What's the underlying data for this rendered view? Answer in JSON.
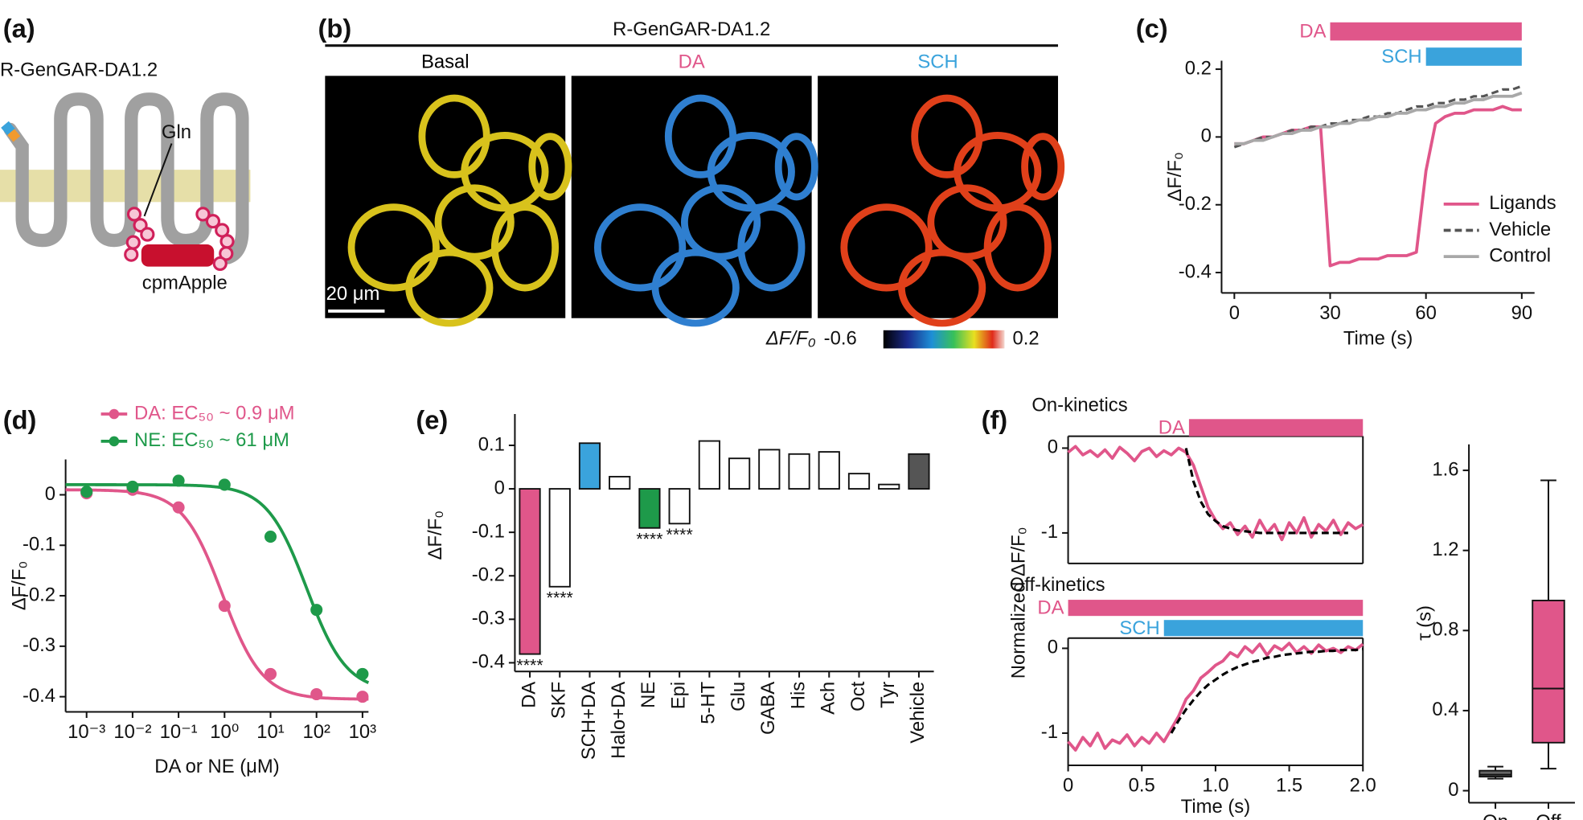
{
  "panel_a": {
    "label": "(a)",
    "title": "R-GenGAR-DA1.2",
    "residue": "Gln",
    "domain": "cpmApple"
  },
  "panel_b": {
    "label": "(b)",
    "title": "R-GenGAR-DA1.2",
    "images": [
      {
        "title": "Basal",
        "color": "#000000"
      },
      {
        "title": "DA",
        "color": "#e0568a"
      },
      {
        "title": "SCH",
        "color": "#3aa3dc"
      }
    ],
    "scale_bar": "20 μm",
    "colorbar": {
      "label": "ΔF/F₀",
      "min": -0.6,
      "max": 0.2
    }
  },
  "chart_data": [
    {
      "type": "line",
      "label": "(c)",
      "xlabel": "Time (s)",
      "ylabel": "ΔF/F₀",
      "x": [
        0,
        3,
        6,
        9,
        12,
        15,
        18,
        21,
        24,
        27,
        30,
        33,
        36,
        39,
        42,
        45,
        48,
        51,
        54,
        57,
        60,
        63,
        66,
        69,
        72,
        75,
        78,
        81,
        84,
        87,
        90
      ],
      "xlim": [
        -4,
        94
      ],
      "xticks": [
        0,
        30,
        60,
        90
      ],
      "ylim": [
        -0.46,
        0.225
      ],
      "yticks": [
        -0.4,
        -0.2,
        0,
        0.2
      ],
      "legend": "lower right",
      "series": [
        {
          "name": "Ligands",
          "color": "#e0568a",
          "values": [
            -0.02,
            -0.02,
            -0.01,
            0,
            0,
            0.01,
            0.02,
            0.02,
            0.03,
            0.03,
            -0.38,
            -0.37,
            -0.37,
            -0.36,
            -0.36,
            -0.36,
            -0.35,
            -0.35,
            -0.35,
            -0.34,
            -0.1,
            0.04,
            0.06,
            0.07,
            0.07,
            0.08,
            0.08,
            0.08,
            0.09,
            0.08,
            0.08
          ]
        },
        {
          "name": "Vehicle",
          "color": "#555555",
          "dash": true,
          "values": [
            -0.03,
            -0.02,
            -0.01,
            0,
            0,
            0.01,
            0.02,
            0.02,
            0.03,
            0.03,
            0.04,
            0.04,
            0.05,
            0.05,
            0.06,
            0.06,
            0.07,
            0.07,
            0.08,
            0.09,
            0.09,
            0.1,
            0.1,
            0.11,
            0.11,
            0.12,
            0.12,
            0.13,
            0.14,
            0.14,
            0.15
          ]
        },
        {
          "name": "Control",
          "color": "#a8a8a8",
          "values": [
            -0.02,
            -0.02,
            -0.01,
            -0.01,
            0,
            0.01,
            0.01,
            0.02,
            0.02,
            0.03,
            0.03,
            0.04,
            0.04,
            0.05,
            0.05,
            0.06,
            0.06,
            0.07,
            0.07,
            0.08,
            0.08,
            0.09,
            0.09,
            0.1,
            0.1,
            0.11,
            0.11,
            0.12,
            0.12,
            0.12,
            0.13
          ]
        }
      ],
      "drug_bars": [
        {
          "name": "DA",
          "start": 30,
          "end": 90,
          "color": "#e0568a"
        },
        {
          "name": "SCH",
          "start": 60,
          "end": 90,
          "color": "#3aa3dc"
        }
      ]
    },
    {
      "type": "dose_response",
      "label": "(d)",
      "xlabel": "DA or NE (μM)",
      "ylabel": "ΔF/F₀",
      "log_x": true,
      "x": [
        0.001,
        0.01,
        0.1,
        1,
        10,
        100,
        1000
      ],
      "xlim": [
        0.00035,
        1350
      ],
      "xticks": [
        {
          "value": 0.001,
          "label": "10⁻³"
        },
        {
          "value": 0.01,
          "label": "10⁻²"
        },
        {
          "value": 0.1,
          "label": "10⁻¹"
        },
        {
          "value": 1,
          "label": "10⁰"
        },
        {
          "value": 10,
          "label": "10¹"
        },
        {
          "value": 100,
          "label": "10²"
        },
        {
          "value": 1000,
          "label": "10³"
        }
      ],
      "ylim": [
        -0.43,
        0.07
      ],
      "yticks": [
        -0.4,
        -0.3,
        -0.2,
        -0.1,
        0
      ],
      "legend": "top",
      "series": [
        {
          "name": "DA: EC₅₀ ~ 0.9 μM",
          "color": "#e0568a",
          "values": [
            0.003,
            0.01,
            -0.025,
            -0.22,
            -0.355,
            -0.395,
            -0.4
          ],
          "fit": {
            "top": 0.01,
            "bottom": -0.405,
            "ec50": 0.9,
            "hill": 1
          }
        },
        {
          "name": "NE: EC₅₀ ~ 61 μM",
          "color": "#1e9a4a",
          "values": [
            0.006,
            0.016,
            0.028,
            0.02,
            -0.083,
            -0.228,
            -0.355
          ],
          "fit": {
            "top": 0.02,
            "bottom": -0.39,
            "ec50": 61,
            "hill": 1
          }
        }
      ]
    },
    {
      "type": "bar",
      "label": "(e)",
      "ylabel": "ΔF/F₀",
      "categories": [
        "DA",
        "SKF",
        "SCH+DA",
        "Halo+DA",
        "NE",
        "Epi",
        "5-HT",
        "Glu",
        "GABA",
        "His",
        "Ach",
        "Oct",
        "Tyr",
        "Vehicle"
      ],
      "values": [
        -0.38,
        -0.225,
        0.105,
        0.028,
        -0.09,
        -0.08,
        0.11,
        0.07,
        0.09,
        0.08,
        0.085,
        0.035,
        0.01,
        0.08
      ],
      "colors": [
        "#e0568a",
        "#ffffff",
        "#3aa3dc",
        "#ffffff",
        "#1e9a4a",
        "#ffffff",
        "#ffffff",
        "#ffffff",
        "#ffffff",
        "#ffffff",
        "#ffffff",
        "#ffffff",
        "#ffffff",
        "#555555"
      ],
      "significance": [
        "****",
        "****",
        null,
        null,
        "****",
        "****",
        null,
        null,
        null,
        null,
        null,
        null,
        null,
        null
      ],
      "ylim": [
        -0.42,
        0.172
      ],
      "yticks": [
        -0.4,
        -0.3,
        -0.2,
        -0.1,
        0,
        0.1
      ]
    },
    {
      "type": "line",
      "label": "(f)",
      "title": "On-kinetics",
      "ylabel": "Normalized ΔF/F₀",
      "x": [
        0,
        0.05,
        0.1,
        0.15,
        0.2,
        0.25,
        0.3,
        0.35,
        0.4,
        0.45,
        0.5,
        0.55,
        0.6,
        0.65,
        0.7,
        0.75,
        0.8,
        0.85,
        0.9,
        0.95,
        1,
        1.05,
        1.1,
        1.15,
        1.2,
        1.25,
        1.3,
        1.35,
        1.4,
        1.45,
        1.5,
        1.55,
        1.6,
        1.65,
        1.7,
        1.75,
        1.8,
        1.85,
        1.9,
        1.95,
        2
      ],
      "xlim": [
        0,
        2
      ],
      "ylim": [
        -1.36,
        0.14
      ],
      "yticks": [
        -1,
        0
      ],
      "series": [
        {
          "color": "#e0568a",
          "values": [
            -0.05,
            0.02,
            -0.08,
            -0.03,
            -0.1,
            -0.02,
            -0.12,
            0.01,
            -0.06,
            -0.15,
            -0.04,
            0,
            -0.1,
            -0.03,
            -0.08,
            0,
            -0.05,
            -0.2,
            -0.45,
            -0.7,
            -0.85,
            -0.95,
            -0.88,
            -1.02,
            -0.92,
            -1.05,
            -0.85,
            -1,
            -0.9,
            -1.08,
            -0.88,
            -1,
            -0.82,
            -1.05,
            -0.9,
            -0.98,
            -0.85,
            -1.02,
            -0.88,
            -0.95,
            -0.9
          ]
        },
        {
          "color": "#000000",
          "dash": true,
          "values": [
            null,
            null,
            null,
            null,
            null,
            null,
            null,
            null,
            null,
            null,
            null,
            null,
            null,
            null,
            null,
            null,
            0,
            -0.39,
            -0.63,
            -0.78,
            -0.86,
            -0.92,
            -0.95,
            -0.97,
            -0.98,
            -0.99,
            -1,
            -1,
            -1,
            -1,
            -1,
            -1,
            -1,
            -1,
            -1,
            -1,
            -1,
            -1,
            -1,
            null,
            null
          ]
        }
      ],
      "drug_bars": [
        {
          "name": "DA",
          "start": 0.82,
          "end": 2,
          "color": "#e0568a"
        }
      ]
    },
    {
      "type": "line",
      "title": "Off-kinetics",
      "xlabel": "Time (s)",
      "x": [
        0,
        0.05,
        0.1,
        0.15,
        0.2,
        0.25,
        0.3,
        0.35,
        0.4,
        0.45,
        0.5,
        0.55,
        0.6,
        0.65,
        0.7,
        0.75,
        0.8,
        0.85,
        0.9,
        0.95,
        1,
        1.05,
        1.1,
        1.15,
        1.2,
        1.25,
        1.3,
        1.35,
        1.4,
        1.45,
        1.5,
        1.55,
        1.6,
        1.65,
        1.7,
        1.75,
        1.8,
        1.85,
        1.9,
        1.95,
        2
      ],
      "xlim": [
        0,
        2
      ],
      "xticks": [
        0,
        0.5,
        {
          "value": 1,
          "label": "1.0"
        },
        1.5,
        {
          "value": 2,
          "label": "2.0"
        }
      ],
      "ylim": [
        -1.38,
        0.12
      ],
      "yticks": [
        -1,
        0
      ],
      "series": [
        {
          "color": "#e0568a",
          "values": [
            -1.1,
            -1.2,
            -1.05,
            -1.15,
            -1,
            -1.18,
            -1.08,
            -1.12,
            -1.02,
            -1.15,
            -1.05,
            -1.12,
            -1,
            -1.1,
            -0.95,
            -0.8,
            -0.6,
            -0.5,
            -0.35,
            -0.28,
            -0.2,
            -0.15,
            -0.05,
            -0.1,
            0.02,
            -0.05,
            0.05,
            -0.08,
            0.03,
            -0.02,
            0.06,
            -0.05,
            0.02,
            -0.06,
            0.04,
            -0.03,
            0,
            -0.05,
            0.02,
            -0.02,
            0.05
          ]
        },
        {
          "color": "#000000",
          "dash": true,
          "values": [
            null,
            null,
            null,
            null,
            null,
            null,
            null,
            null,
            null,
            null,
            null,
            null,
            null,
            null,
            -1,
            -0.85,
            -0.72,
            -0.61,
            -0.51,
            -0.43,
            -0.37,
            -0.31,
            -0.26,
            -0.22,
            -0.19,
            -0.16,
            -0.14,
            -0.11,
            -0.1,
            -0.08,
            -0.07,
            -0.06,
            -0.05,
            -0.04,
            -0.04,
            -0.03,
            -0.03,
            -0.02,
            -0.02,
            -0.02,
            -0.01
          ]
        }
      ],
      "drug_bars": [
        {
          "name": "DA",
          "start": 0,
          "end": 2,
          "color": "#e0568a"
        },
        {
          "name": "SCH",
          "start": 0.65,
          "end": 2,
          "color": "#3aa3dc"
        }
      ]
    },
    {
      "type": "box",
      "ylabel": "τ (s)",
      "categories": [
        "On",
        "Off"
      ],
      "ylim": [
        -0.06,
        1.73
      ],
      "yticks": [
        0,
        0.4,
        0.8,
        1.2,
        1.6
      ],
      "boxes": [
        {
          "min": 0.06,
          "q1": 0.07,
          "median": 0.08,
          "q3": 0.1,
          "max": 0.12,
          "color": "#666666"
        },
        {
          "min": 0.11,
          "q1": 0.24,
          "median": 0.51,
          "q3": 0.95,
          "max": 1.55,
          "color": "#e0568a"
        }
      ]
    }
  ]
}
